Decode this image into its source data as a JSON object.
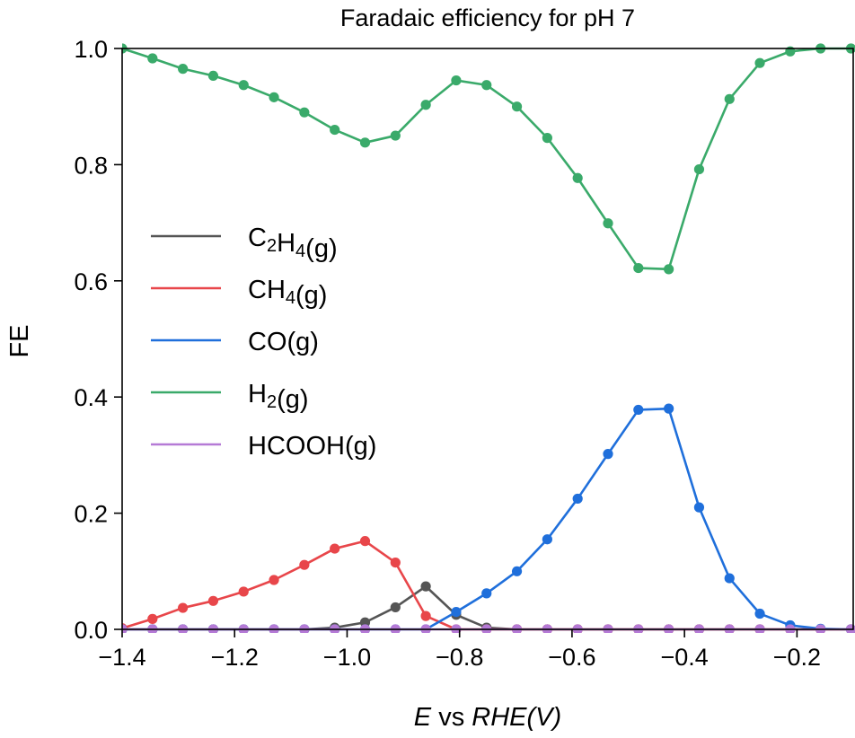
{
  "chart_data": {
    "type": "line",
    "title": "Faradaic efficiency for pH 7",
    "xlabel_parts": [
      {
        "text": "E",
        "italic": true
      },
      {
        "text": " vs ",
        "italic": false
      },
      {
        "text": "RHE",
        "italic": true
      },
      {
        "text": "(",
        "italic": true
      },
      {
        "text": "V",
        "italic": true
      },
      {
        "text": ")",
        "italic": true
      }
    ],
    "ylabel": "FE",
    "xlim": [
      -1.4,
      -0.1
    ],
    "ylim": [
      0.0,
      1.0
    ],
    "x_ticks": [
      -1.4,
      -1.2,
      -1.0,
      -0.8,
      -0.6,
      -0.4,
      -0.2
    ],
    "x_tick_labels": [
      "−1.4",
      "−1.2",
      "−1.0",
      "−0.8",
      "−0.6",
      "−0.4",
      "−0.2"
    ],
    "y_ticks": [
      0.0,
      0.2,
      0.4,
      0.6,
      0.8,
      1.0
    ],
    "y_tick_labels": [
      "0.0",
      "0.2",
      "0.4",
      "0.6",
      "0.8",
      "1.0"
    ],
    "grid": false,
    "legend_position": "center-left",
    "x": [
      -1.4,
      -1.346,
      -1.292,
      -1.238,
      -1.184,
      -1.13,
      -1.076,
      -1.022,
      -0.968,
      -0.914,
      -0.86,
      -0.806,
      -0.752,
      -0.698,
      -0.644,
      -0.59,
      -0.536,
      -0.482,
      -0.428,
      -0.374,
      -0.32,
      -0.266,
      -0.212,
      -0.158,
      -0.104
    ],
    "series": [
      {
        "name": "C2H4(g)",
        "name_parts": [
          {
            "text": "C"
          },
          {
            "text": "2",
            "sub": true
          },
          {
            "text": "H"
          },
          {
            "text": "4",
            "sub": true
          },
          {
            "text": "(g)"
          }
        ],
        "color": "#555555",
        "values": [
          0.0,
          0.0,
          0.0,
          0.0,
          0.0,
          0.0,
          0.0,
          0.003,
          0.012,
          0.038,
          0.074,
          0.025,
          0.003,
          0.0,
          0.0,
          0.0,
          0.0,
          0.0,
          0.0,
          0.0,
          0.0,
          0.0,
          0.0,
          0.0,
          0.0
        ]
      },
      {
        "name": "CH4(g)",
        "name_parts": [
          {
            "text": "CH"
          },
          {
            "text": "4",
            "sub": true
          },
          {
            "text": "(g)"
          }
        ],
        "color": "#e8464a",
        "values": [
          0.002,
          0.018,
          0.037,
          0.049,
          0.065,
          0.085,
          0.111,
          0.139,
          0.152,
          0.115,
          0.023,
          0.0,
          0.0,
          0.0,
          0.0,
          0.0,
          0.0,
          0.0,
          0.0,
          0.0,
          0.0,
          0.0,
          0.0,
          0.0,
          0.0
        ]
      },
      {
        "name": "CO(g)",
        "name_parts": [
          {
            "text": "CO(g)"
          }
        ],
        "color": "#1f6fdb",
        "values": [
          0.0,
          0.0,
          0.0,
          0.0,
          0.0,
          0.0,
          0.0,
          0.0,
          0.0,
          0.0,
          0.0,
          0.03,
          0.062,
          0.1,
          0.155,
          0.225,
          0.302,
          0.378,
          0.38,
          0.21,
          0.088,
          0.027,
          0.007,
          0.001,
          0.0
        ]
      },
      {
        "name": "H2(g)",
        "name_parts": [
          {
            "text": "H"
          },
          {
            "text": "2",
            "sub": true
          },
          {
            "text": "(g)"
          }
        ],
        "color": "#3aaa6a",
        "values": [
          1.0,
          0.983,
          0.965,
          0.953,
          0.937,
          0.916,
          0.89,
          0.86,
          0.838,
          0.85,
          0.903,
          0.945,
          0.937,
          0.9,
          0.846,
          0.777,
          0.699,
          0.622,
          0.62,
          0.792,
          0.913,
          0.975,
          0.995,
          1.0,
          1.0
        ]
      },
      {
        "name": "HCOOH(g)",
        "name_parts": [
          {
            "text": "HCOOH(g)"
          }
        ],
        "color": "#b57ad6",
        "values": [
          0.0,
          0.0,
          0.0,
          0.0,
          0.0,
          0.0,
          0.0,
          0.0,
          0.0,
          0.0,
          0.0,
          0.0,
          0.0,
          0.0,
          0.0,
          0.0,
          0.0,
          0.0,
          0.0,
          0.0,
          0.0,
          0.0,
          0.0,
          0.0,
          0.0
        ]
      }
    ]
  }
}
